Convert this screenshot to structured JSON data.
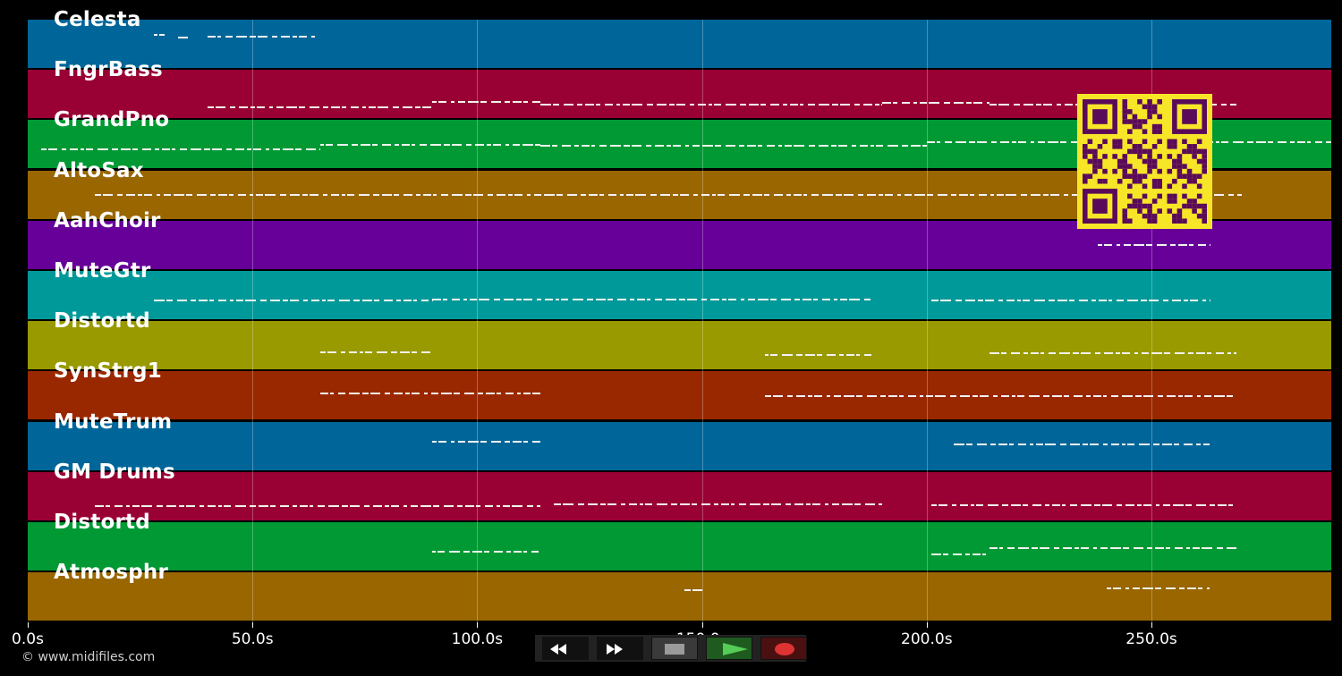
{
  "tracks": [
    {
      "name": "Celesta",
      "color": "#006699"
    },
    {
      "name": "FngrBass",
      "color": "#990033"
    },
    {
      "name": "GrandPno",
      "color": "#009933"
    },
    {
      "name": "AltoSax",
      "color": "#996600"
    },
    {
      "name": "AahChoir",
      "color": "#660099"
    },
    {
      "name": "MuteGtr",
      "color": "#009999"
    },
    {
      "name": "Distortd",
      "color": "#999900"
    },
    {
      "name": "SynStrg1",
      "color": "#992800"
    },
    {
      "name": "MuteTrum",
      "color": "#006699"
    },
    {
      "name": "GM Drums",
      "color": "#990033"
    },
    {
      "name": "Distortd",
      "color": "#009933"
    },
    {
      "name": "Atmosphr",
      "color": "#996600"
    }
  ],
  "timeline": {
    "max_seconds": 290,
    "ticks": [
      {
        "value": 0,
        "label": "0.0s"
      },
      {
        "value": 50,
        "label": "50.0s"
      },
      {
        "value": 100,
        "label": "100.0s"
      },
      {
        "value": 150,
        "label": "150.0s"
      },
      {
        "value": 200,
        "label": "200.0s"
      },
      {
        "value": 250,
        "label": "250.0s"
      }
    ]
  },
  "note_segments": [
    {
      "track": 0,
      "start": 28,
      "end": 30.5,
      "y": 0.33
    },
    {
      "track": 0,
      "start": 33.5,
      "end": 36,
      "y": 0.33
    },
    {
      "track": 0,
      "start": 40,
      "end": 64.5,
      "y": 0.35
    },
    {
      "track": 1,
      "start": 40,
      "end": 90,
      "y": 0.72
    },
    {
      "track": 1,
      "start": 90,
      "end": 114,
      "y": 0.65
    },
    {
      "track": 1,
      "start": 114,
      "end": 190,
      "y": 0.73
    },
    {
      "track": 1,
      "start": 190,
      "end": 214,
      "y": 0.65
    },
    {
      "track": 1,
      "start": 214,
      "end": 269,
      "y": 0.72
    },
    {
      "track": 2,
      "start": 3,
      "end": 65,
      "y": 0.55
    },
    {
      "track": 2,
      "start": 65,
      "end": 114,
      "y": 0.5
    },
    {
      "track": 2,
      "start": 114,
      "end": 200,
      "y": 0.55
    },
    {
      "track": 2,
      "start": 200,
      "end": 290,
      "y": 0.42
    },
    {
      "track": 3,
      "start": 15,
      "end": 270,
      "y": 0.5
    },
    {
      "track": 4,
      "start": 238,
      "end": 263,
      "y": 0.45
    },
    {
      "track": 5,
      "start": 28,
      "end": 90,
      "y": 0.6
    },
    {
      "track": 5,
      "start": 90,
      "end": 188,
      "y": 0.62
    },
    {
      "track": 5,
      "start": 201,
      "end": 263,
      "y": 0.58
    },
    {
      "track": 6,
      "start": 65,
      "end": 90,
      "y": 0.65
    },
    {
      "track": 6,
      "start": 164,
      "end": 188,
      "y": 0.65
    },
    {
      "track": 6,
      "start": 214,
      "end": 269,
      "y": 0.65
    },
    {
      "track": 7,
      "start": 65,
      "end": 114,
      "y": 0.48
    },
    {
      "track": 7,
      "start": 164,
      "end": 269,
      "y": 0.48
    },
    {
      "track": 8,
      "start": 90,
      "end": 114,
      "y": 0.42
    },
    {
      "track": 8,
      "start": 206,
      "end": 263,
      "y": 0.42
    },
    {
      "track": 9,
      "start": 15,
      "end": 114,
      "y": 0.68
    },
    {
      "track": 9,
      "start": 117,
      "end": 190,
      "y": 0.68
    },
    {
      "track": 9,
      "start": 201,
      "end": 269,
      "y": 0.65
    },
    {
      "track": 10,
      "start": 90,
      "end": 114,
      "y": 0.62
    },
    {
      "track": 10,
      "start": 201,
      "end": 214,
      "y": 0.62
    },
    {
      "track": 10,
      "start": 214,
      "end": 269,
      "y": 0.52
    },
    {
      "track": 11,
      "start": 146,
      "end": 150,
      "y": 0.38
    },
    {
      "track": 11,
      "start": 240,
      "end": 263,
      "y": 0.3
    }
  ],
  "transport": {
    "buttons": [
      {
        "name": "rewind",
        "icon": "rewind-icon",
        "bg": "#111111",
        "fg": "#ffffff"
      },
      {
        "name": "fast-forward",
        "icon": "fast-forward-icon",
        "bg": "#111111",
        "fg": "#ffffff"
      },
      {
        "name": "stop",
        "icon": "stop-icon",
        "bg": "#3a3a3a",
        "fg": "#9a9a9a"
      },
      {
        "name": "play",
        "icon": "play-icon",
        "bg": "#1f5a1f",
        "fg": "#55cc55"
      },
      {
        "name": "record",
        "icon": "record-icon",
        "bg": "#4a1010",
        "fg": "#dd3333"
      }
    ]
  },
  "footer": {
    "copyright": "© www.midifiles.com"
  },
  "overlay": {
    "icon": "qr-code-icon",
    "bg": "#f7e628",
    "fg": "#5a0a5a"
  }
}
